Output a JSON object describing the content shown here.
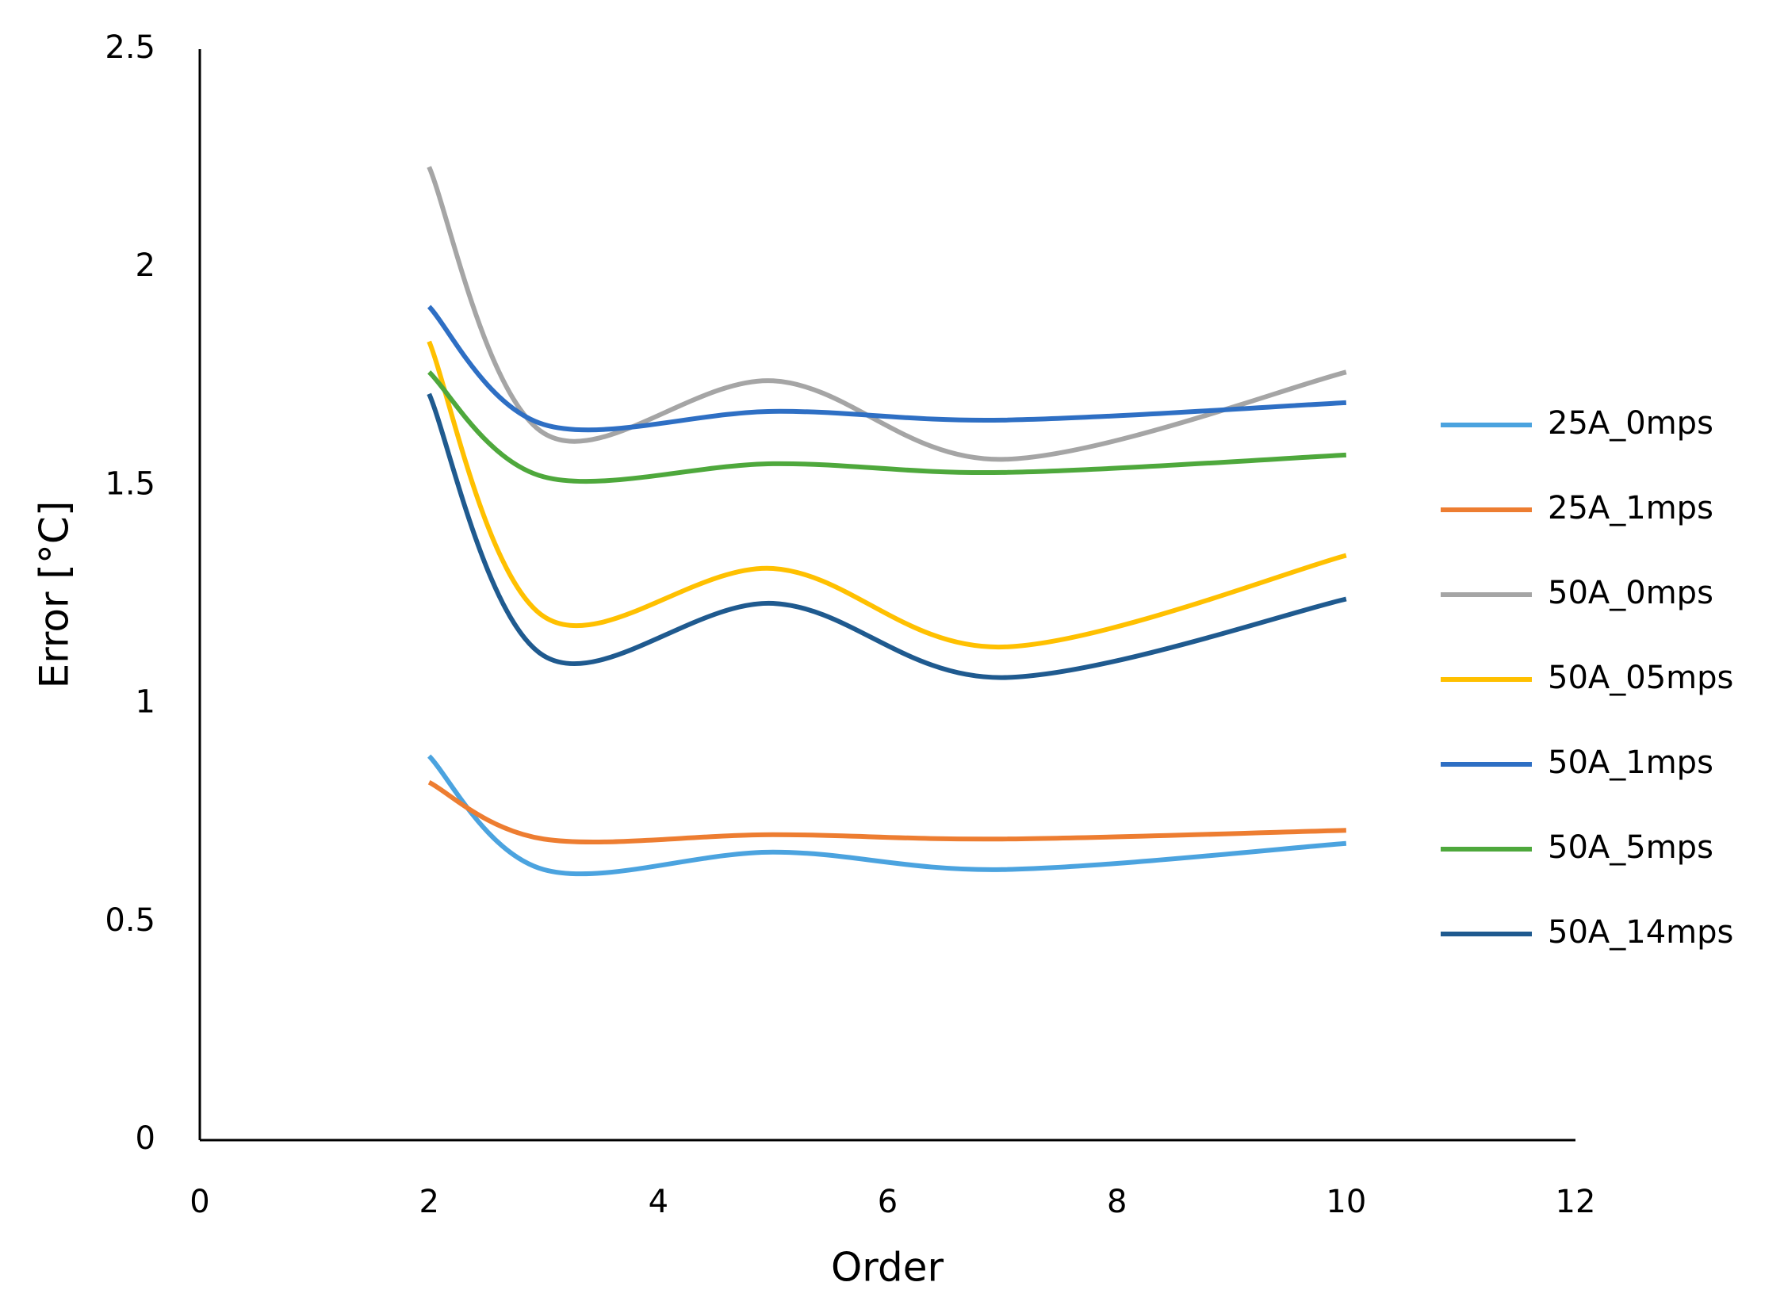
{
  "chart_data": {
    "type": "line",
    "x_label": "Order",
    "y_label": "Error [°C]",
    "x": [
      2,
      3,
      5,
      7,
      10
    ],
    "xlim": [
      0,
      12
    ],
    "xticks": [
      0,
      2,
      4,
      6,
      8,
      10,
      12
    ],
    "ylim": [
      0,
      2.5
    ],
    "yticks": [
      0,
      0.5,
      1,
      1.5,
      2,
      2.5
    ],
    "grid": false,
    "smooth": true,
    "legend": "right",
    "series": [
      {
        "name": "25A_0mps",
        "color": "#4ba3df",
        "values": [
          0.88,
          0.62,
          0.66,
          0.62,
          0.68
        ]
      },
      {
        "name": "25A_1mps",
        "color": "#ed7d31",
        "values": [
          0.82,
          0.69,
          0.7,
          0.69,
          0.71
        ]
      },
      {
        "name": "50A_0mps",
        "color": "#a5a5a5",
        "values": [
          2.23,
          1.62,
          1.74,
          1.56,
          1.76
        ]
      },
      {
        "name": "50A_05mps",
        "color": "#ffc000",
        "values": [
          1.83,
          1.2,
          1.31,
          1.13,
          1.34
        ]
      },
      {
        "name": "50A_1mps",
        "color": "#2e6fc4",
        "values": [
          1.91,
          1.64,
          1.67,
          1.65,
          1.69
        ]
      },
      {
        "name": "50A_5mps",
        "color": "#4ea83c",
        "values": [
          1.76,
          1.52,
          1.55,
          1.53,
          1.57
        ]
      },
      {
        "name": "50A_14mps",
        "color": "#1f5a8f",
        "values": [
          1.71,
          1.11,
          1.23,
          1.06,
          1.24
        ]
      }
    ]
  }
}
